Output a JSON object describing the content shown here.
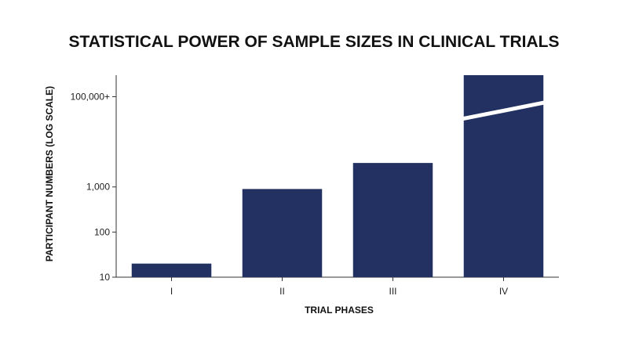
{
  "chart_data": {
    "type": "bar",
    "title": "STATISTICAL POWER OF SAMPLE SIZES IN CLINICAL TRIALS",
    "xlabel": "TRIAL PHASES",
    "ylabel": "PARTICIPANT NUMBERS (LOG SCALE)",
    "y_scale": "log",
    "ylim": [
      10,
      300000
    ],
    "yticks": [
      {
        "value": 10,
        "label": "10"
      },
      {
        "value": 100,
        "label": "100"
      },
      {
        "value": 1000,
        "label": "1,000"
      },
      {
        "value": 100000,
        "label": "100,000+"
      }
    ],
    "categories": [
      "I",
      "II",
      "III",
      "IV"
    ],
    "values": [
      20,
      900,
      3400,
      300000
    ],
    "truncated": [
      false,
      false,
      false,
      true
    ],
    "bar_color": "#233162",
    "grid": false,
    "legend": "none"
  }
}
